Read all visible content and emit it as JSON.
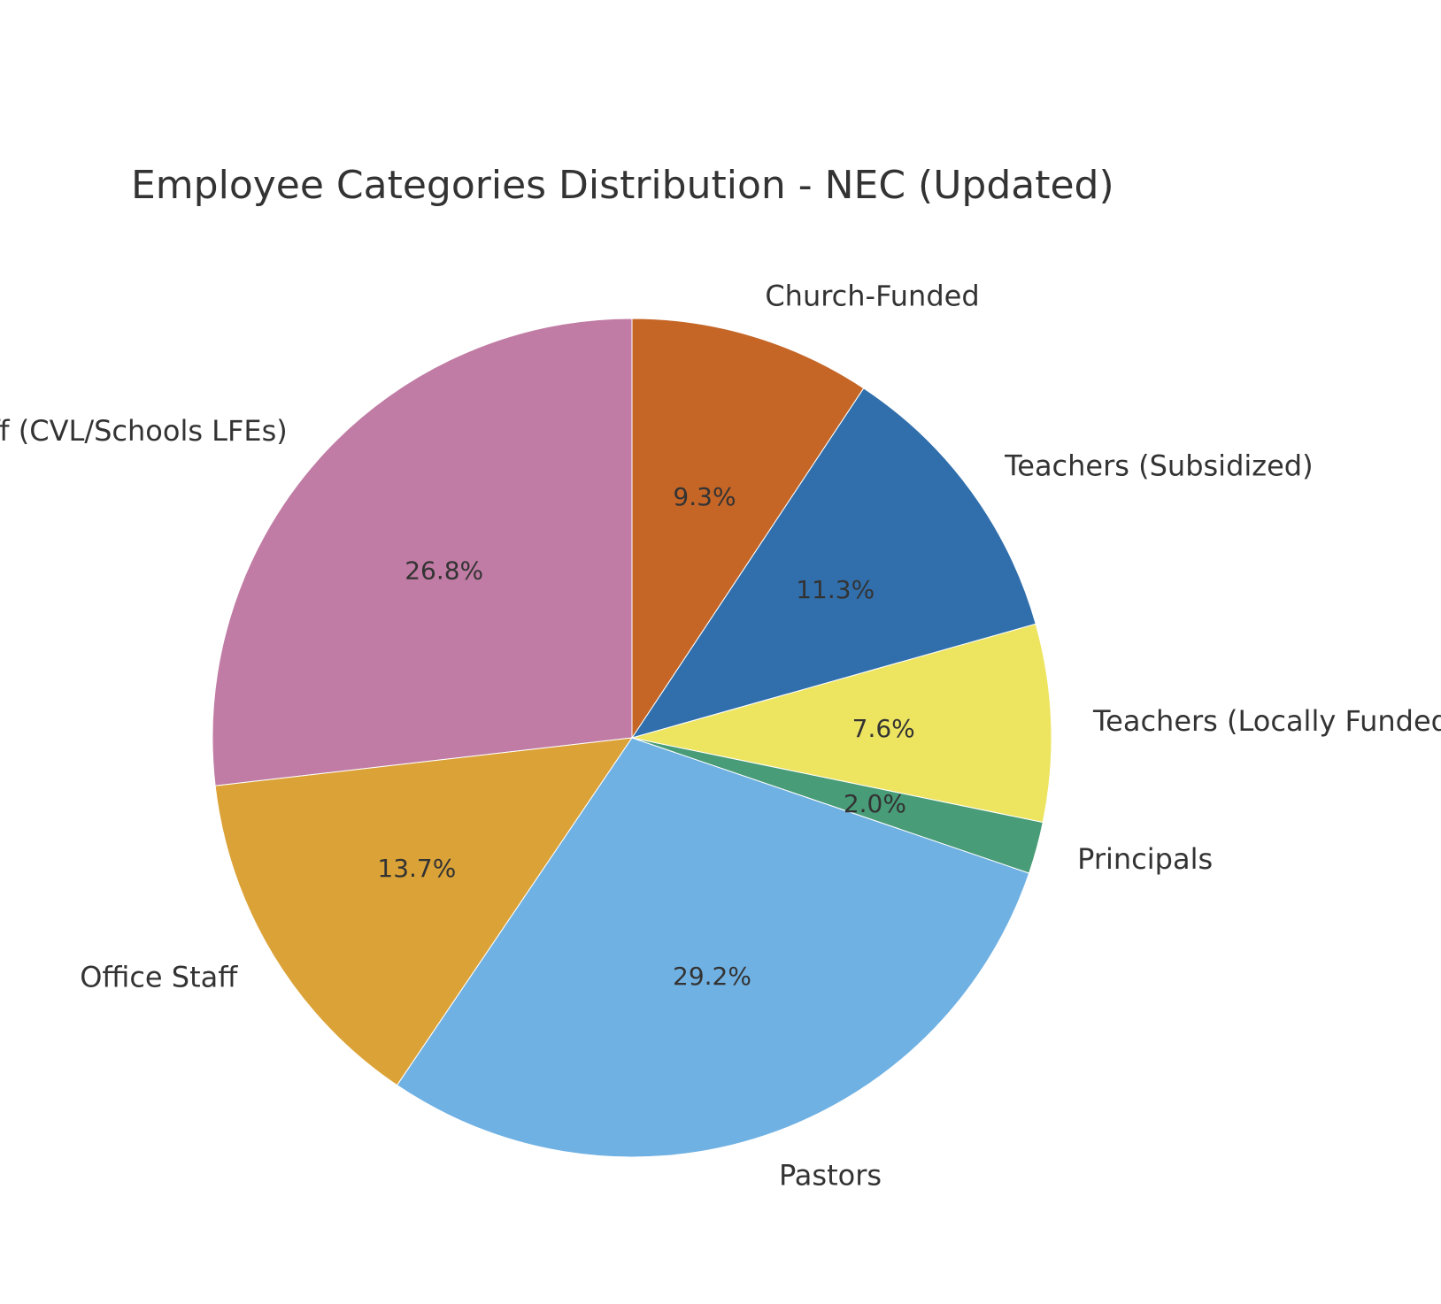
{
  "chart_data": {
    "type": "pie",
    "title": "Employee Categories Distribution - NEC (Updated)",
    "start_angle_deg": 90,
    "direction": "counterclockwise",
    "slices": [
      {
        "label": "Support Staff (CVL/Schools LFEs)",
        "value": 26.8,
        "pct_label": "26.8%",
        "color": "#c07ca4"
      },
      {
        "label": "Office Staff",
        "value": 13.7,
        "pct_label": "13.7%",
        "color": "#dba237"
      },
      {
        "label": "Pastors",
        "value": 29.2,
        "pct_label": "29.2%",
        "color": "#70b1e3"
      },
      {
        "label": "Principals",
        "value": 2.0,
        "pct_label": "2.0%",
        "color": "#489c78"
      },
      {
        "label": "Teachers (Locally Funded)",
        "value": 7.6,
        "pct_label": "7.6%",
        "color": "#ede460"
      },
      {
        "label": "Teachers (Subsidized)",
        "value": 11.3,
        "pct_label": "11.3%",
        "color": "#306fac"
      },
      {
        "label": "Church-Funded",
        "value": 9.3,
        "pct_label": "9.3%",
        "color": "#c56627"
      }
    ]
  }
}
